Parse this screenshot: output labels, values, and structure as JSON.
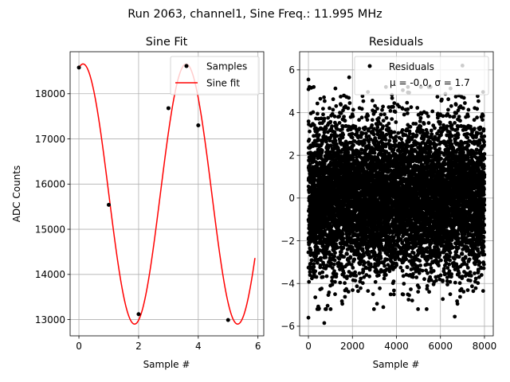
{
  "figure": {
    "suptitle": "Run 2063, channel1, Sine Freq.: 11.995 MHz"
  },
  "chart_data": [
    {
      "type": "scatter",
      "title": "Sine Fit",
      "xlabel": "Sample #",
      "ylabel": "ADC Counts",
      "xlim": [
        -0.295,
        6.195
      ],
      "ylim": [
        12640,
        18930
      ],
      "xticks": [
        0,
        2,
        4,
        6
      ],
      "xtick_labels": [
        "0",
        "2",
        "4",
        "6"
      ],
      "yticks": [
        13000,
        14000,
        15000,
        16000,
        17000,
        18000
      ],
      "ytick_labels": [
        "13000",
        "14000",
        "15000",
        "16000",
        "17000",
        "18000"
      ],
      "grid": true,
      "legend_position": "upper-right",
      "legend": [
        "Samples",
        "Sine fit"
      ],
      "series": [
        {
          "name": "Samples",
          "kind": "scatter",
          "color": "#000000",
          "x": [
            0,
            1,
            2,
            3,
            3.6,
            4,
            5
          ],
          "y": [
            18580,
            15540,
            13120,
            17680,
            18620,
            17300,
            12990
          ]
        },
        {
          "name": "Sine fit",
          "kind": "line",
          "color": "#ff0000",
          "function": {
            "offset": 15780,
            "amplitude": 2880,
            "frequency": 0.2895,
            "phase": 1.32,
            "x_range": [
              0,
              5.9
            ]
          }
        }
      ]
    },
    {
      "type": "scatter",
      "title": "Residuals",
      "xlabel": "Sample #",
      "ylabel": "",
      "xlim": [
        -400,
        8400
      ],
      "ylim": [
        -6.45,
        6.85
      ],
      "xticks": [
        0,
        2000,
        4000,
        6000,
        8000
      ],
      "xtick_labels": [
        "0",
        "2000",
        "4000",
        "6000",
        "8000"
      ],
      "yticks": [
        -6,
        -4,
        -2,
        0,
        2,
        4,
        6
      ],
      "ytick_labels": [
        "−6",
        "−4",
        "−2",
        "0",
        "2",
        "4",
        "6"
      ],
      "grid": true,
      "legend_position": "upper-right",
      "legend": [
        "Residuals",
        "μ = -0.0, σ = 1.7"
      ],
      "series": [
        {
          "name": "Residuals",
          "kind": "scatter",
          "color": "#000000",
          "n_points": 8000,
          "mean": 0.0,
          "std": 1.7,
          "x_range": [
            0,
            7999
          ],
          "highlighted_points": [
            {
              "x": 0,
              "y": 5.55
            },
            {
              "x": 0,
              "y": -5.6
            },
            {
              "x": 1850,
              "y": 5.65
            },
            {
              "x": 7000,
              "y": 6.2
            },
            {
              "x": 720,
              "y": -5.85
            },
            {
              "x": 6650,
              "y": -5.55
            }
          ]
        }
      ]
    }
  ]
}
